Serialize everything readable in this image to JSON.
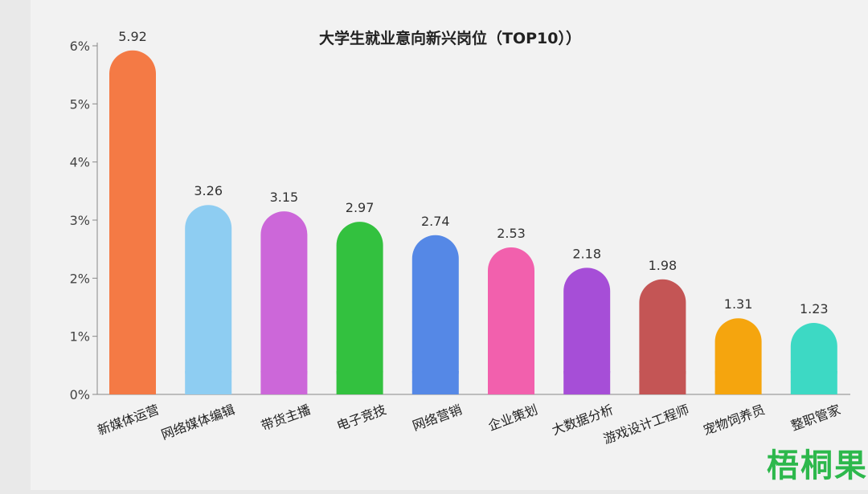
{
  "chart_data": {
    "type": "bar",
    "title": "大学生就业意向新兴岗位（TOP10））",
    "categories": [
      "新媒体运营",
      "网络媒体编辑",
      "带货主播",
      "电子竞技",
      "网络营销",
      "企业策划",
      "大数据分析",
      "游戏设计工程师",
      "宠物饲养员",
      "整职管家"
    ],
    "values": [
      5.92,
      3.26,
      3.15,
      2.97,
      2.74,
      2.53,
      2.18,
      1.98,
      1.31,
      1.23
    ],
    "value_labels": [
      "5.92",
      "3.26",
      "3.15",
      "2.97",
      "2.74",
      "2.53",
      "2.18",
      "1.98",
      "1.31",
      "1.23"
    ],
    "colors": [
      "#f47a45",
      "#8ecdf2",
      "#cc67d9",
      "#33c13f",
      "#5588e6",
      "#f260ad",
      "#a64ed7",
      "#c45555",
      "#f5a50e",
      "#3dd9c4"
    ],
    "yticks": [
      "0%",
      "1%",
      "2%",
      "3%",
      "4%",
      "5%",
      "6%"
    ],
    "ylim": [
      0,
      6
    ],
    "xlabel": "",
    "ylabel": "",
    "grid": false,
    "legend": "none"
  },
  "watermark": "梧桐果"
}
